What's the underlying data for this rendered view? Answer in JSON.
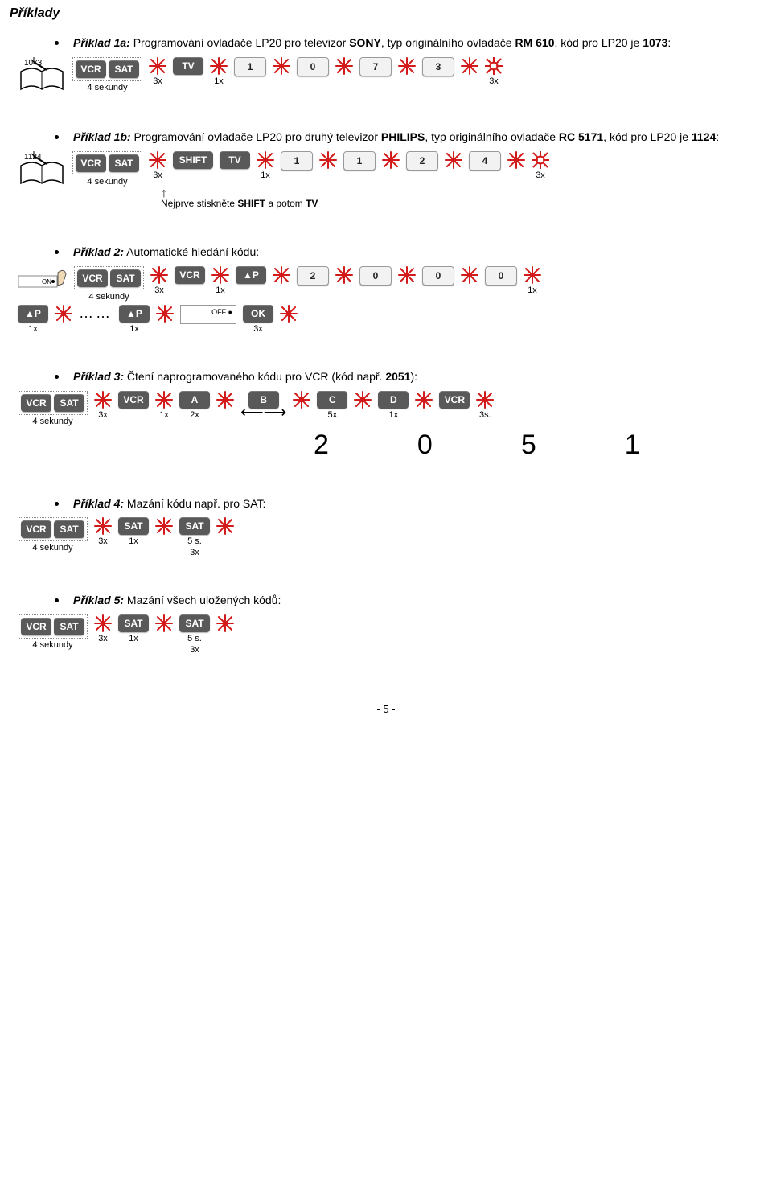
{
  "title": "Příklady",
  "burst_color": "#d31a1a",
  "hole_stroke": "#d31a1a",
  "key_bg": "#595959",
  "key_fg": "#ffffff",
  "examples": {
    "e1a": {
      "label": "Příklad 1a:",
      "text_before": " Programování ovladače LP20 pro televizor ",
      "brand": "SONY",
      "text_mid": ", typ originálního ovladače ",
      "model": "RM 610",
      "text_after": ", kód pro LP20 je ",
      "code": "1073",
      "colon": ":",
      "book_label": "1073",
      "steps": [
        {
          "box": [
            "VCR",
            "SAT"
          ],
          "cap": "4 sekundy"
        },
        {
          "burst": true,
          "cap": "3x"
        },
        {
          "key": "TV"
        },
        {
          "burst": true,
          "cap": "1x"
        },
        {
          "key": "1",
          "white": true
        },
        {
          "burst": true
        },
        {
          "key": "0",
          "white": true
        },
        {
          "burst": true
        },
        {
          "key": "7",
          "white": true
        },
        {
          "burst": true
        },
        {
          "key": "3",
          "white": true
        },
        {
          "burst": true
        },
        {
          "hole": true,
          "cap": "3x"
        }
      ]
    },
    "e1b": {
      "label": "Příklad 1b:",
      "text_before": " Programování ovladače LP20 pro druhý televizor ",
      "brand": "PHILIPS",
      "text_mid": ", typ originálního ovladače ",
      "model": "RC 5171",
      "text_after": ", kód pro LP20 je ",
      "code": "1124",
      "colon": ":",
      "book_label": "1124",
      "steps": [
        {
          "box": [
            "VCR",
            "SAT"
          ],
          "cap": "4 sekundy"
        },
        {
          "burst": true,
          "cap": "3x"
        },
        {
          "key": "SHIFT",
          "wide": true
        },
        {
          "key": "TV"
        },
        {
          "burst": true,
          "cap": "1x"
        },
        {
          "key": "1",
          "white": true
        },
        {
          "burst": true
        },
        {
          "key": "1",
          "white": true
        },
        {
          "burst": true
        },
        {
          "key": "2",
          "white": true
        },
        {
          "burst": true
        },
        {
          "key": "4",
          "white": true
        },
        {
          "burst": true
        },
        {
          "hole": true,
          "cap": "3x"
        }
      ],
      "note_pre": "Nejprve stiskněte ",
      "note_b1": "SHIFT",
      "note_mid": " a potom ",
      "note_b2": "TV"
    },
    "e2": {
      "label": "Příklad 2:",
      "text": " Automatické hledání kódu:",
      "row1": [
        {
          "onbox": true
        },
        {
          "box": [
            "VCR",
            "SAT"
          ],
          "cap": "4 sekundy"
        },
        {
          "burst": true,
          "cap": "3x"
        },
        {
          "key": "VCR"
        },
        {
          "burst": true,
          "cap": "1x"
        },
        {
          "key": "▲P"
        },
        {
          "burst": true
        },
        {
          "key": "2",
          "white": true
        },
        {
          "burst": true
        },
        {
          "key": "0",
          "white": true
        },
        {
          "burst": true
        },
        {
          "key": "0",
          "white": true
        },
        {
          "burst": true
        },
        {
          "key": "0",
          "white": true
        },
        {
          "burst": true,
          "cap": "1x"
        }
      ],
      "row2": [
        {
          "key": "▲P",
          "cap": "1x"
        },
        {
          "burst": true
        },
        {
          "dots": "……"
        },
        {
          "key": "▲P",
          "cap": "1x"
        },
        {
          "burst": true
        },
        {
          "offbox": true
        },
        {
          "key": "OK",
          "cap": "3x"
        },
        {
          "burst": true
        }
      ]
    },
    "e3": {
      "label": "Příklad 3:",
      "text_before": " Čtení naprogramovaného kódu pro VCR (kód např. ",
      "code": "2051",
      "text_after": "):",
      "row": [
        {
          "box": [
            "VCR",
            "SAT"
          ],
          "cap": "4 sekundy"
        },
        {
          "burst": true,
          "cap": "3x"
        },
        {
          "key": "VCR"
        },
        {
          "burst": true,
          "cap": "1x"
        },
        {
          "key": "A",
          "cap": "2x"
        },
        {
          "burst": true
        },
        {
          "key": "B",
          "twoarrow": true
        },
        {
          "burst": true
        },
        {
          "key": "C",
          "cap": "5x"
        },
        {
          "burst": true
        },
        {
          "key": "D",
          "cap": "1x"
        },
        {
          "burst": true
        },
        {
          "key": "VCR"
        },
        {
          "burst": true,
          "cap": "3s."
        }
      ],
      "digits": [
        "2",
        "0",
        "5",
        "1"
      ]
    },
    "e4": {
      "label": "Příklad 4:",
      "text": " Mazání kódu např. pro SAT:",
      "row": [
        {
          "box": [
            "VCR",
            "SAT"
          ],
          "cap": "4 sekundy"
        },
        {
          "burst": true,
          "cap": "3x"
        },
        {
          "key": "SAT",
          "cap": "1x"
        },
        {
          "burst": true
        },
        {
          "key": "SAT",
          "cap_pre": "5 s.",
          "cap": "3x",
          "cap_right": true
        },
        {
          "burst": true
        }
      ]
    },
    "e5": {
      "label": "Příklad 5:",
      "text": " Mazání všech uložených kódů:",
      "row": [
        {
          "box": [
            "VCR",
            "SAT"
          ],
          "cap": "4 sekundy"
        },
        {
          "burst": true,
          "cap": "3x"
        },
        {
          "key": "SAT",
          "cap": "1x"
        },
        {
          "burst": true
        },
        {
          "key": "SAT",
          "cap_pre": "5 s.",
          "cap": "3x",
          "cap_right": true
        },
        {
          "burst": true
        }
      ]
    }
  },
  "pager": "- 5 -"
}
